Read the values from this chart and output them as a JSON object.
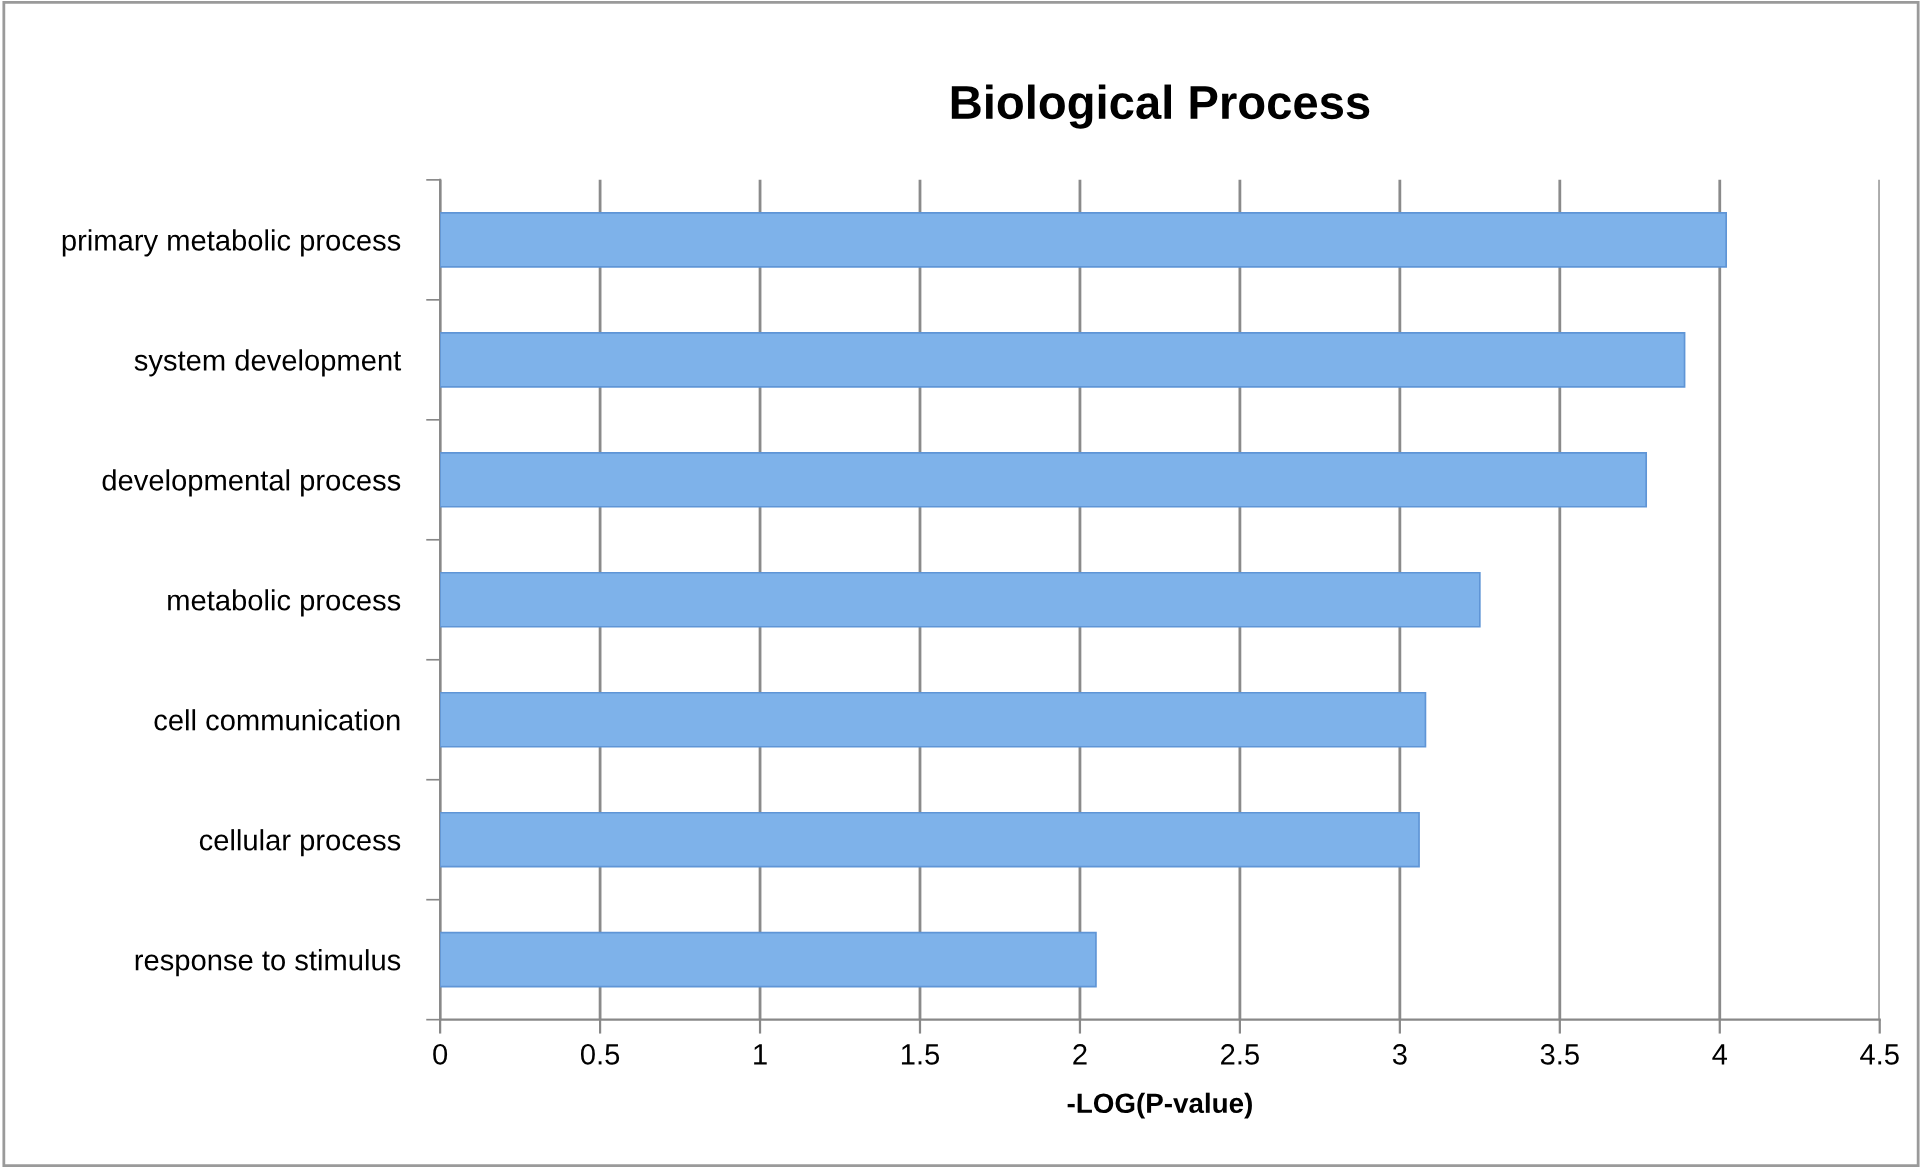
{
  "chart_data": {
    "type": "bar",
    "orientation": "horizontal",
    "title": "Biological Process",
    "xlabel": "-LOG(P-value)",
    "categories": [
      "primary metabolic process",
      "system development",
      "developmental process",
      "metabolic process",
      "cell communication",
      "cellular process",
      "response to stimulus"
    ],
    "values": [
      4.02,
      3.89,
      3.77,
      3.25,
      3.08,
      3.06,
      2.05
    ],
    "color": "#7eb2ea",
    "xlim": [
      0,
      4.5
    ],
    "xticks": [
      0,
      0.5,
      1,
      1.5,
      2,
      2.5,
      3,
      3.5,
      4,
      4.5
    ],
    "grid": "x",
    "legend": false
  }
}
